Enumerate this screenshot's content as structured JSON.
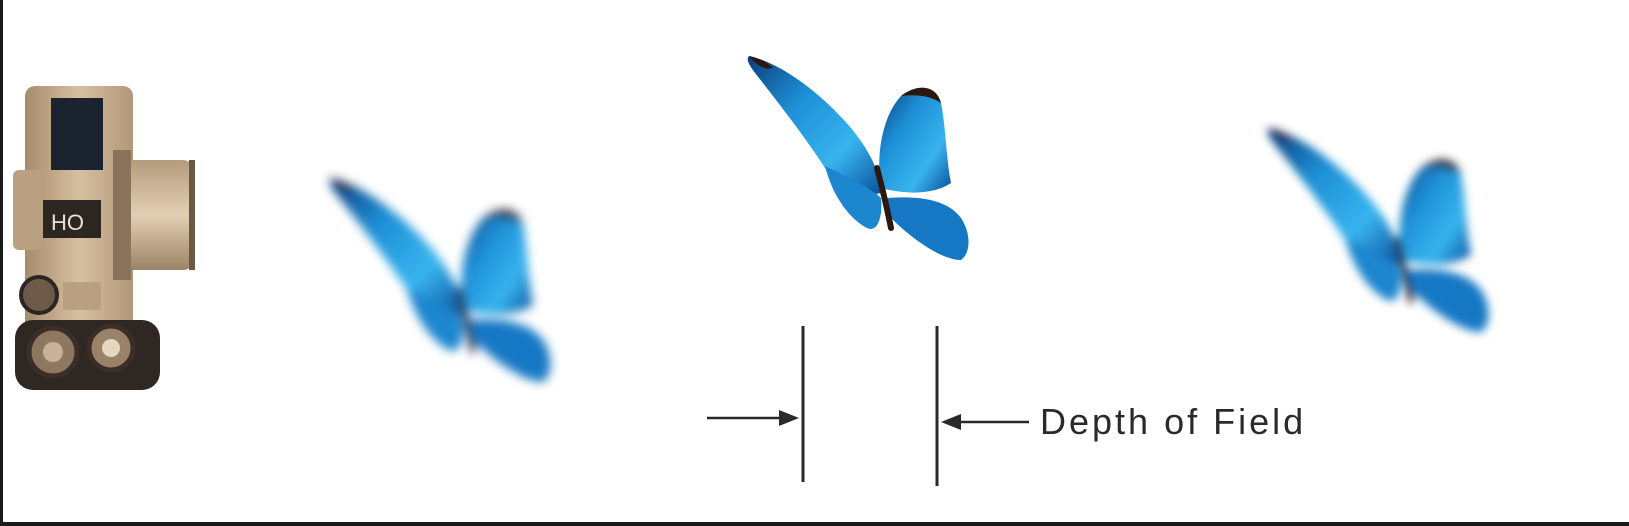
{
  "diagram": {
    "label": "Depth of Field",
    "icons": {
      "camera": "camera-icon",
      "butterfly_near": "butterfly-icon",
      "butterfly_focus": "butterfly-icon",
      "butterfly_far": "butterfly-icon"
    },
    "colors": {
      "wing_blue": "#1e8fd6",
      "wing_dark": "#0b3d7a",
      "body_dark": "#2a1810",
      "camera_tan": "#c9b08f",
      "camera_dark": "#3a2e26",
      "line": "#2a2a2a"
    }
  }
}
